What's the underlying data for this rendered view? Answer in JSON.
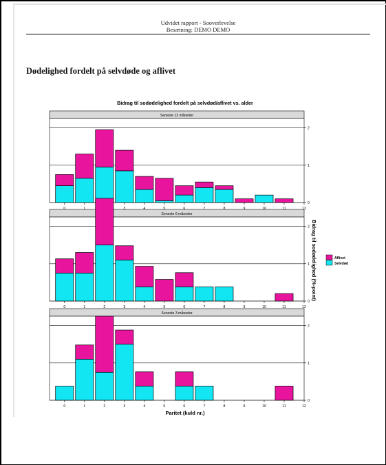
{
  "header": {
    "line1": "Udvidet rapport - Sooverlevelse",
    "line2": "Besætning: DEMO DEMO"
  },
  "section_title": "Dødelighed fordelt på selvdøde og aflivet",
  "colors": {
    "aflivet": "#e8149e",
    "selvdod": "#11e6f2",
    "strip_bg": "#d9d9d9",
    "grid": "#222222",
    "bar_edge": "#000000"
  },
  "chart_data": {
    "type": "bar",
    "stacked": true,
    "title": "Bidrag til sodødelighed fordelt på selvdød/aflivet vs. alder",
    "xlabel": "Paritet (kuld nr.)",
    "ylabel": "Bidrag til sodødelighed (%-point)",
    "x_ticks": [
      "0",
      "1",
      "2",
      "3",
      "4",
      "5",
      "6",
      "7",
      "8",
      "9",
      "10",
      "11",
      "12"
    ],
    "y_ticks": [
      "0",
      "1",
      "2"
    ],
    "ylim": [
      0,
      2.25
    ],
    "grid": true,
    "legend_position": "right",
    "legend": [
      {
        "name": "Aflivet",
        "color": "#e8149e"
      },
      {
        "name": "Selvdød",
        "color": "#11e6f2"
      }
    ],
    "categories": [
      "0",
      "1",
      "2",
      "3",
      "4",
      "5",
      "6",
      "7",
      "8",
      "9",
      "10",
      "11"
    ],
    "panels": [
      {
        "name": "Seneste 12 måneder",
        "series": [
          {
            "name": "Selvdød",
            "values": [
              0.45,
              0.65,
              0.95,
              0.85,
              0.35,
              0.05,
              0.2,
              0.4,
              0.35,
              0.0,
              0.2,
              0.0
            ]
          },
          {
            "name": "Aflivet",
            "values": [
              0.3,
              0.65,
              1.0,
              0.55,
              0.35,
              0.6,
              0.25,
              0.15,
              0.1,
              0.1,
              0.0,
              0.1
            ]
          }
        ]
      },
      {
        "name": "Seneste 6 måneder",
        "series": [
          {
            "name": "Selvdød",
            "values": [
              0.75,
              0.75,
              1.5,
              1.1,
              0.38,
              0.0,
              0.38,
              0.38,
              0.38,
              0.0,
              0.0,
              0.0
            ]
          },
          {
            "name": "Aflivet",
            "values": [
              0.38,
              0.55,
              1.25,
              0.38,
              0.55,
              0.58,
              0.38,
              0.0,
              0.0,
              0.0,
              0.0,
              0.2
            ]
          }
        ]
      },
      {
        "name": "Seneste 3 måneder",
        "series": [
          {
            "name": "Selvdød",
            "values": [
              0.38,
              1.1,
              0.75,
              1.5,
              0.38,
              0.0,
              0.38,
              0.38,
              0.0,
              0.0,
              0.0,
              0.0
            ]
          },
          {
            "name": "Aflivet",
            "values": [
              0.0,
              0.38,
              1.5,
              0.38,
              0.38,
              0.0,
              0.38,
              0.0,
              0.0,
              0.0,
              0.0,
              0.38
            ]
          }
        ]
      }
    ]
  }
}
